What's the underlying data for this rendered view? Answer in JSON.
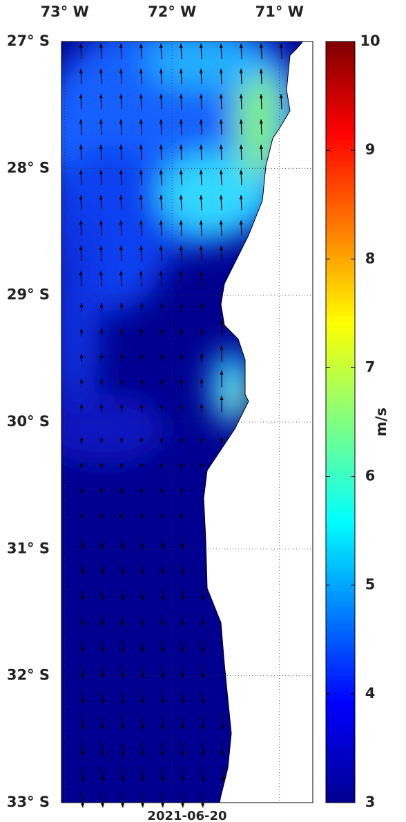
{
  "map": {
    "lonlim": [
      -73.03,
      -70.69
    ],
    "latlim": [
      -33,
      -27
    ],
    "lon_ticks": [
      {
        "value": -73,
        "label": "73° W"
      },
      {
        "value": -72,
        "label": "72° W"
      },
      {
        "value": -71,
        "label": "71° W"
      }
    ],
    "lat_ticks": [
      {
        "value": -27,
        "label": "27° S"
      },
      {
        "value": -28,
        "label": "28° S"
      },
      {
        "value": -29,
        "label": "29° S"
      },
      {
        "value": -30,
        "label": "30° S"
      },
      {
        "value": -31,
        "label": "31° S"
      },
      {
        "value": -32,
        "label": "32° S"
      },
      {
        "value": -33,
        "label": "33° S"
      }
    ],
    "date": "2021-06-20"
  },
  "colorbar": {
    "label": "m/s",
    "lim": [
      3,
      10
    ],
    "ticks": [
      3,
      4,
      5,
      6,
      7,
      8,
      9,
      10
    ]
  }
}
